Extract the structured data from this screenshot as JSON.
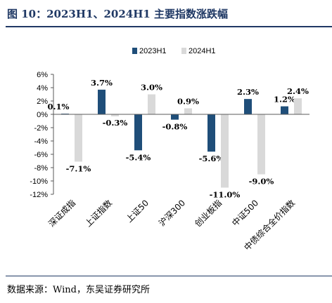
{
  "header": {
    "title": "图 10：2023H1、2024H1 主要指数涨跌幅"
  },
  "footer": {
    "source": "数据来源：Wind，东吴证券研究所"
  },
  "colors": {
    "series_2023": "#1f4e79",
    "series_2024": "#d9d9d9",
    "title": "#1f3864"
  },
  "chart_data": {
    "type": "bar",
    "categories": [
      "深证成指",
      "上证指数",
      "上证50",
      "沪深300",
      "创业板指",
      "中证500",
      "中债综合全价指数"
    ],
    "series": [
      {
        "name": "2023H1",
        "values": [
          0.1,
          3.7,
          -5.4,
          -0.8,
          -5.6,
          2.3,
          1.2
        ]
      },
      {
        "name": "2024H1",
        "values": [
          -7.1,
          -0.3,
          3.0,
          0.9,
          -11.0,
          -9.0,
          2.4
        ]
      }
    ],
    "data_labels": [
      [
        "0.1%",
        "3.7%",
        "-5.4%",
        "-0.8%",
        "-5.6%",
        "2.3%",
        "1.2%"
      ],
      [
        "-7.1%",
        "-0.3%",
        "3.0%",
        "0.9%",
        "-11.0%",
        "-9.0%",
        "2.4%"
      ]
    ],
    "y_ticks": [
      6,
      4,
      2,
      0,
      -2,
      -4,
      -6,
      -8,
      -10,
      -12
    ],
    "y_tick_labels": [
      "6%",
      "4%",
      "2%",
      "0%",
      "-2%",
      "-4%",
      "-6%",
      "-8%",
      "-10%",
      "-12%"
    ],
    "ylim": [
      -12,
      6
    ],
    "legend_position": "top-center",
    "grid": false
  }
}
